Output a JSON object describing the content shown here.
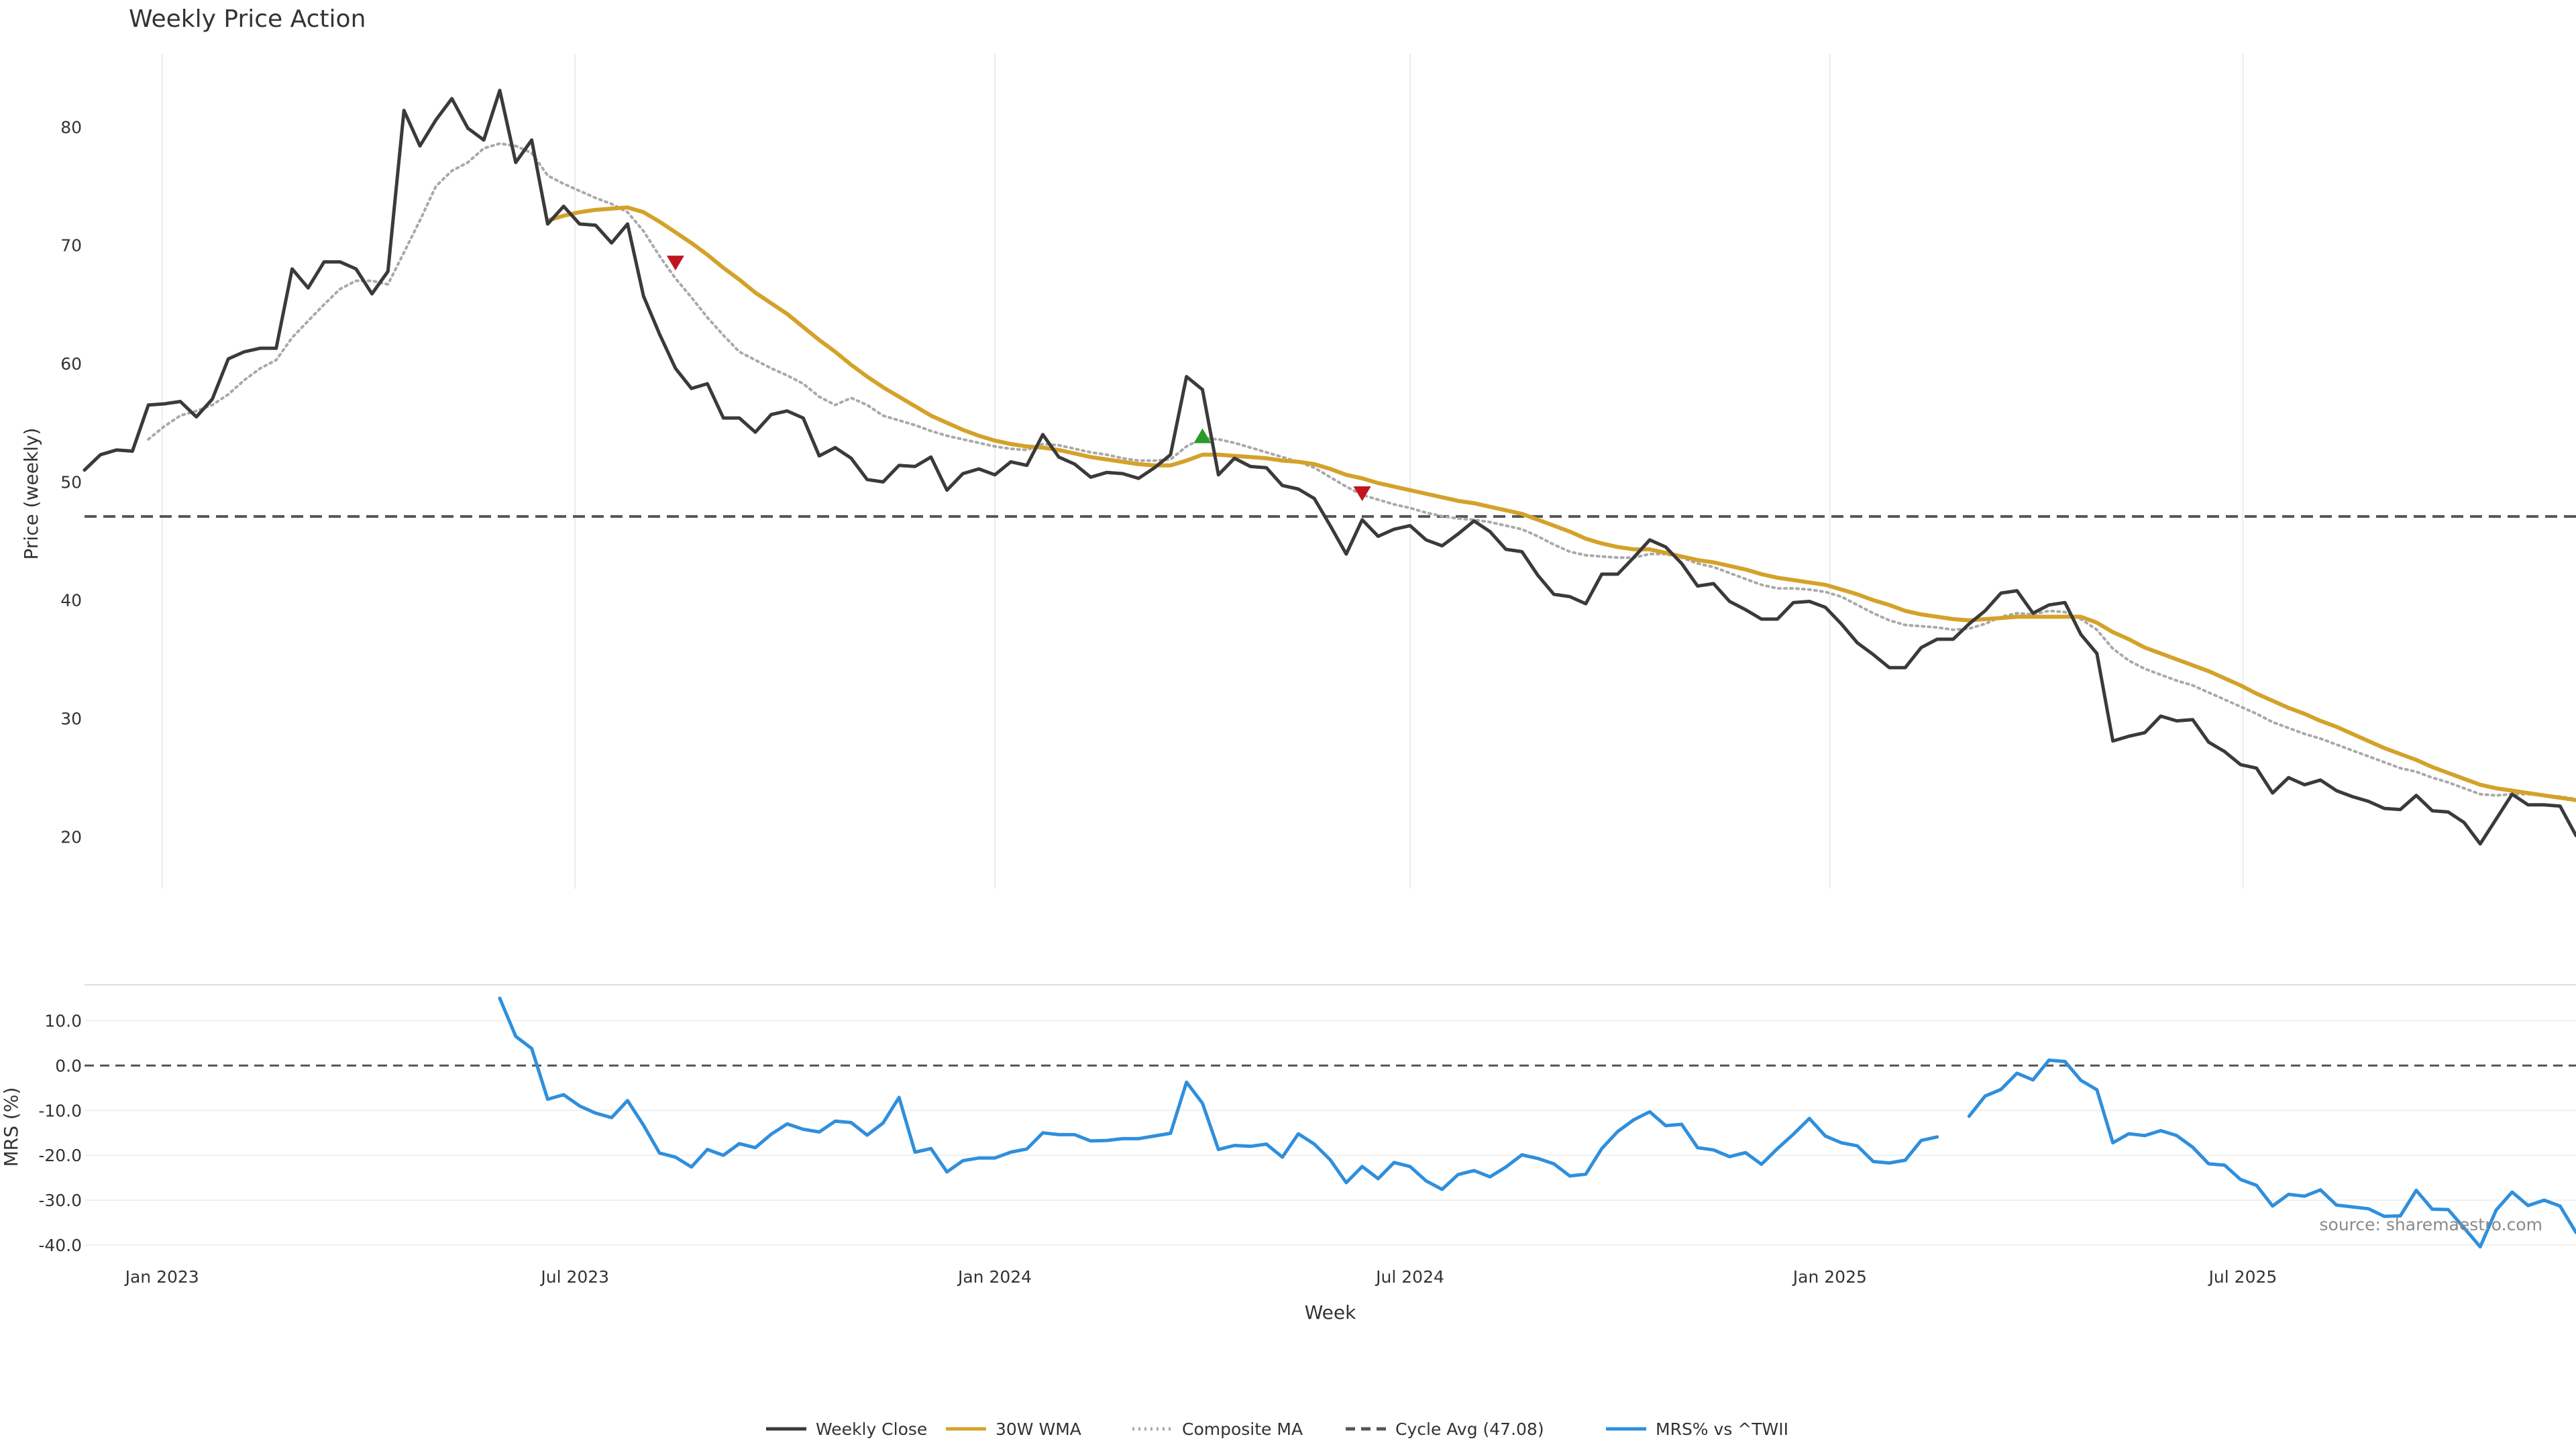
{
  "chart_data": {
    "title": "Weekly Price Action",
    "source_note": "source: sharemaestro.com",
    "x_axis": {
      "label": "Week",
      "range": [
        "2022-11-28",
        "2025-11-24"
      ],
      "ticks": [
        {
          "date": "2023-01-01",
          "label": "Jan 2023"
        },
        {
          "date": "2023-07-01",
          "label": "Jul 2023"
        },
        {
          "date": "2024-01-01",
          "label": "Jan 2024"
        },
        {
          "date": "2024-07-01",
          "label": "Jul 2024"
        },
        {
          "date": "2025-01-01",
          "label": "Jan 2025"
        },
        {
          "date": "2025-07-01",
          "label": "Jul 2025"
        }
      ]
    },
    "price_panel": {
      "type": "line",
      "ylabel": "Price (weekly)",
      "ylim": [
        15.6,
        86.2
      ],
      "yticks": [
        20,
        30,
        40,
        50,
        60,
        70,
        80
      ],
      "grid": "vertical",
      "cycle_avg": 47.08,
      "series": [
        {
          "name": "Weekly Close",
          "color": "#3a3a3a",
          "style": "solid",
          "values": [
            51.0,
            52.3,
            52.7,
            52.6,
            56.5,
            56.6,
            56.8,
            55.5,
            57.0,
            60.4,
            61.0,
            61.3,
            61.3,
            68.0,
            66.4,
            68.6,
            68.6,
            68.0,
            65.9,
            67.8,
            81.4,
            78.4,
            80.6,
            82.4,
            79.9,
            78.9,
            83.1,
            77.0,
            78.9,
            71.8,
            73.3,
            71.8,
            71.7,
            70.2,
            71.8,
            65.7,
            62.5,
            59.6,
            57.9,
            58.3,
            55.4,
            55.4,
            54.2,
            55.7,
            56.0,
            55.4,
            52.2,
            52.9,
            52.0,
            50.2,
            50.0,
            51.4,
            51.3,
            52.1,
            49.3,
            50.7,
            51.1,
            50.6,
            51.7,
            51.4,
            54.0,
            52.1,
            51.5,
            50.4,
            50.8,
            50.7,
            50.3,
            51.2,
            52.3,
            58.9,
            57.8,
            50.6,
            52.0,
            51.3,
            51.2,
            49.7,
            49.4,
            48.6,
            46.3,
            43.9,
            46.8,
            45.4,
            46.0,
            46.3,
            45.1,
            44.6,
            45.6,
            46.7,
            45.8,
            44.3,
            44.1,
            42.1,
            40.5,
            40.3,
            39.7,
            42.2,
            42.2,
            43.6,
            45.1,
            44.5,
            43.1,
            41.2,
            41.4,
            39.9,
            39.2,
            38.4,
            38.4,
            39.8,
            39.9,
            39.4,
            38.0,
            36.4,
            35.4,
            34.3,
            34.3,
            36.0,
            36.7,
            36.7,
            38.0,
            39.1,
            40.6,
            40.8,
            38.9,
            39.6,
            39.8,
            37.1,
            35.5,
            28.1,
            28.5,
            28.8,
            30.2,
            29.8,
            29.9,
            28.0,
            27.2,
            26.1,
            25.8,
            23.7,
            25.0,
            24.4,
            24.8,
            23.9,
            23.4,
            23.0,
            22.4,
            22.3,
            23.5,
            22.2,
            22.1,
            21.2,
            19.4,
            21.5,
            23.6,
            22.7,
            22.7,
            22.6,
            20.1
          ]
        },
        {
          "name": "30W WMA",
          "color": "#d4a22a",
          "style": "solid",
          "values": [
            null,
            null,
            null,
            null,
            null,
            null,
            null,
            null,
            null,
            null,
            null,
            null,
            null,
            null,
            null,
            null,
            null,
            null,
            null,
            null,
            null,
            null,
            null,
            null,
            null,
            null,
            null,
            null,
            null,
            72.1,
            72.5,
            72.8,
            73.0,
            73.1,
            73.2,
            72.8,
            72.0,
            71.1,
            70.2,
            69.2,
            68.1,
            67.1,
            66.0,
            65.1,
            64.2,
            63.1,
            62.0,
            61.0,
            59.9,
            58.9,
            58.0,
            57.2,
            56.4,
            55.6,
            55.0,
            54.4,
            53.9,
            53.5,
            53.2,
            53.0,
            52.9,
            52.7,
            52.4,
            52.1,
            51.9,
            51.7,
            51.5,
            51.4,
            51.4,
            51.8,
            52.3,
            52.3,
            52.2,
            52.1,
            52.0,
            51.8,
            51.7,
            51.5,
            51.1,
            50.6,
            50.3,
            49.9,
            49.6,
            49.3,
            49.0,
            48.7,
            48.4,
            48.2,
            47.9,
            47.6,
            47.3,
            46.8,
            46.3,
            45.8,
            45.2,
            44.8,
            44.5,
            44.3,
            44.3,
            44.0,
            43.7,
            43.4,
            43.2,
            42.9,
            42.6,
            42.2,
            41.9,
            41.7,
            41.5,
            41.3,
            40.9,
            40.5,
            40.0,
            39.6,
            39.1,
            38.8,
            38.6,
            38.4,
            38.3,
            38.4,
            38.5,
            38.6,
            38.6,
            38.6,
            38.6,
            38.6,
            38.1,
            37.3,
            36.7,
            36.0,
            35.5,
            35.0,
            34.5,
            34.0,
            33.4,
            32.8,
            32.1,
            31.5,
            30.9,
            30.4,
            29.8,
            29.3,
            28.7,
            28.1,
            27.5,
            27.0,
            26.5,
            25.9,
            25.4,
            24.9,
            24.4,
            24.1,
            23.9,
            23.7,
            23.5,
            23.3,
            23.1
          ]
        },
        {
          "name": "Composite MA",
          "color": "#a9a9a9",
          "style": "dotted",
          "values": [
            null,
            null,
            null,
            null,
            53.6,
            54.7,
            55.6,
            56.0,
            56.5,
            57.4,
            58.6,
            59.6,
            60.3,
            62.2,
            63.6,
            65.0,
            66.3,
            67.0,
            67.0,
            66.7,
            69.4,
            72.1,
            75.0,
            76.3,
            77.0,
            78.2,
            78.6,
            78.4,
            77.8,
            75.9,
            75.2,
            74.6,
            74.0,
            73.5,
            72.8,
            71.2,
            69.1,
            67.2,
            65.6,
            63.9,
            62.4,
            61.0,
            60.3,
            59.6,
            59.0,
            58.3,
            57.2,
            56.5,
            57.1,
            56.5,
            55.6,
            55.2,
            54.8,
            54.3,
            53.9,
            53.6,
            53.3,
            53.0,
            52.8,
            52.7,
            53.2,
            53.1,
            52.8,
            52.5,
            52.3,
            52.0,
            51.8,
            51.8,
            51.9,
            53.0,
            53.7,
            53.6,
            53.3,
            52.9,
            52.5,
            52.1,
            51.7,
            51.2,
            50.4,
            49.6,
            48.9,
            48.5,
            48.1,
            47.8,
            47.4,
            47.1,
            46.9,
            46.8,
            46.6,
            46.3,
            46.0,
            45.4,
            44.7,
            44.1,
            43.8,
            43.7,
            43.6,
            43.6,
            43.9,
            43.9,
            43.6,
            43.1,
            42.8,
            42.3,
            41.8,
            41.3,
            41.0,
            41.0,
            40.9,
            40.7,
            40.3,
            39.6,
            38.9,
            38.3,
            37.9,
            37.8,
            37.7,
            37.5,
            37.6,
            38.0,
            38.6,
            38.9,
            38.8,
            39.1,
            39.0,
            38.4,
            37.5,
            35.9,
            34.9,
            34.2,
            33.7,
            33.2,
            32.8,
            32.2,
            31.6,
            31.0,
            30.4,
            29.7,
            29.2,
            28.7,
            28.3,
            27.8,
            27.3,
            26.8,
            26.3,
            25.8,
            25.5,
            25.0,
            24.6,
            24.1,
            23.6,
            23.5,
            23.6,
            23.6,
            23.5,
            23.4,
            23.2
          ]
        }
      ],
      "markers": [
        {
          "week_index": 37,
          "value": 68.5,
          "shape": "triangle-down",
          "color": "#c0141e"
        },
        {
          "week_index": 70,
          "value": 53.9,
          "shape": "triangle-up",
          "color": "#2a9a2a"
        },
        {
          "week_index": 80,
          "value": 49.0,
          "shape": "triangle-down",
          "color": "#c0141e"
        }
      ]
    },
    "mrs_panel": {
      "type": "line",
      "ylabel": "MRS (%)",
      "ylim": [
        -41.5,
        18.0
      ],
      "yticks": [
        10.0,
        0.0,
        -10.0,
        -20.0,
        -30.0,
        -40.0
      ],
      "ytick_labels": [
        "10.0",
        "0.0",
        "-10.0",
        "-20.0",
        "-30.0",
        "-40.0"
      ],
      "zero_line": 0,
      "series": [
        {
          "name": "MRS% vs ^TWII",
          "color": "#2f8fdc",
          "style": "solid",
          "values": [
            null,
            null,
            null,
            null,
            null,
            null,
            null,
            null,
            null,
            null,
            null,
            null,
            null,
            null,
            null,
            null,
            null,
            null,
            null,
            null,
            null,
            null,
            null,
            null,
            null,
            null,
            15.0,
            6.5,
            3.8,
            -7.5,
            -6.5,
            -9.0,
            -10.6,
            -11.6,
            -7.8,
            -13.3,
            -19.5,
            -20.4,
            -22.6,
            -18.7,
            -20.0,
            -17.4,
            -18.3,
            -15.3,
            -13.0,
            -14.2,
            -14.8,
            -12.4,
            -12.7,
            -15.5,
            -12.8,
            -7.1,
            -19.3,
            -18.5,
            -23.7,
            -21.2,
            -20.6,
            -20.6,
            -19.3,
            -18.6,
            -15.0,
            -15.4,
            -15.4,
            -16.8,
            -16.7,
            -16.3,
            -16.3,
            -15.7,
            -15.1,
            -3.7,
            -8.4,
            -18.7,
            -17.8,
            -18.0,
            -17.5,
            -20.4,
            -15.2,
            -17.5,
            -21.0,
            -26.1,
            -22.5,
            -25.2,
            -21.6,
            -22.5,
            -25.7,
            -27.6,
            -24.3,
            -23.4,
            -24.8,
            -22.6,
            -19.9,
            -20.7,
            -21.9,
            -24.6,
            -24.2,
            -18.5,
            -14.7,
            -12.1,
            -10.3,
            -13.4,
            -13.1,
            -18.3,
            -18.8,
            -20.3,
            -19.4,
            -22.0,
            -18.5,
            -15.3,
            -11.8,
            -15.7,
            -17.2,
            -17.9,
            -21.4,
            -21.7,
            -21.1,
            -16.7,
            -15.9,
            null,
            -11.3,
            -6.8,
            -5.3,
            -1.7,
            -3.2,
            1.2,
            0.9,
            -3.3,
            -5.4,
            -17.2,
            -15.2,
            -15.6,
            -14.5,
            -15.6,
            -18.2,
            -21.9,
            -22.2,
            -25.4,
            -26.7,
            -31.3,
            -28.7,
            -29.1,
            -27.7,
            -31.1,
            -31.5,
            -31.9,
            -33.6,
            -33.5,
            -27.8,
            -32.0,
            -32.1,
            -36.2,
            -40.4,
            -32.2,
            -28.2,
            -31.2,
            -30.0,
            -31.3,
            -37.2
          ]
        }
      ]
    },
    "legend": {
      "placement": "bottom-center",
      "entries": [
        {
          "label": "Weekly Close",
          "color": "#3a3a3a",
          "style": "solid"
        },
        {
          "label": "30W WMA",
          "color": "#d4a22a",
          "style": "solid"
        },
        {
          "label": "Composite MA",
          "color": "#a9a9a9",
          "style": "dotted"
        },
        {
          "label": "Cycle Avg (47.08)",
          "color": "#555555",
          "style": "dashed"
        },
        {
          "label": "MRS% vs ^TWII",
          "color": "#2f8fdc",
          "style": "solid"
        }
      ]
    }
  }
}
